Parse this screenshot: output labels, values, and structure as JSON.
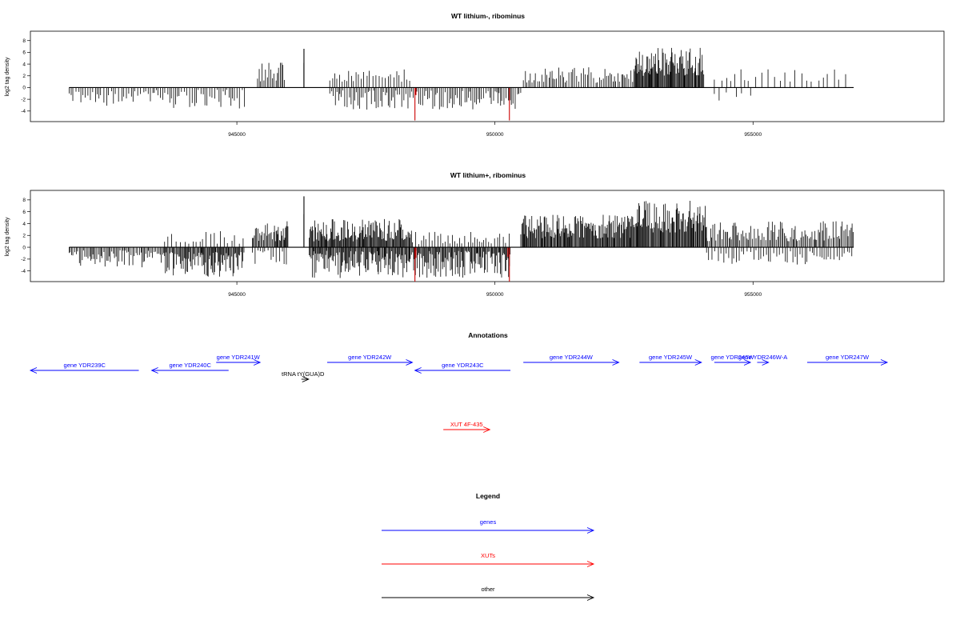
{
  "chart_data": [
    {
      "type": "bar",
      "title": "WT lithium-, ribominus",
      "ylabel": "log2 tag density",
      "xlabel": "",
      "xlim": [
        941000,
        958700
      ],
      "ylim": [
        -5.8,
        9.6
      ],
      "yticks": [
        "8",
        "6",
        "4",
        "2",
        "0",
        "-2",
        "-4"
      ],
      "xticks": [
        "945000",
        "950000",
        "955000"
      ],
      "series": [
        {
          "segments": [
            {
              "from": 941750,
              "to": 943400,
              "sign": -1,
              "density": 0.32,
              "min": 0.6,
              "max": 3.2,
              "seed": 11
            },
            {
              "from": 943400,
              "to": 945150,
              "sign": -1,
              "density": 0.35,
              "min": 0.4,
              "max": 3.6,
              "seed": 12
            },
            {
              "from": 945400,
              "to": 945950,
              "sign": 1,
              "density": 0.45,
              "min": 1.0,
              "max": 4.3,
              "seed": 13
            },
            {
              "from": 946800,
              "to": 948400,
              "sign": 1,
              "density": 0.28,
              "min": 0.8,
              "max": 3.3,
              "seed": 14
            },
            {
              "from": 946800,
              "to": 950500,
              "sign": -1,
              "density": 0.45,
              "min": 0.5,
              "max": 3.8,
              "seed": 15
            },
            {
              "from": 950550,
              "to": 952700,
              "sign": 1,
              "density": 0.45,
              "min": 0.8,
              "max": 3.6,
              "seed": 16
            },
            {
              "from": 952700,
              "to": 954050,
              "sign": 1,
              "density": 1.0,
              "min": 2.0,
              "max": 6.8,
              "seed": 17
            },
            {
              "from": 954250,
              "to": 956900,
              "sign": 1,
              "density": 0.14,
              "min": 1.0,
              "max": 3.2,
              "seed": 18
            },
            {
              "from": 954250,
              "to": 955100,
              "sign": -1,
              "density": 0.1,
              "min": 0.8,
              "max": 2.6,
              "seed": 19
            }
          ],
          "spikes": [
            {
              "x": 946300,
              "y": 6.6,
              "color": "#000000"
            },
            {
              "x": 946300,
              "y": 4.2,
              "color": "#000000"
            },
            {
              "x": 948450,
              "y": -5.6,
              "color": "#cc0000"
            },
            {
              "x": 948470,
              "y": -1.3,
              "color": "#cc0000"
            },
            {
              "x": 950280,
              "y": -5.6,
              "color": "#cc0000"
            }
          ]
        }
      ]
    },
    {
      "type": "bar",
      "title": "WT lithium+, ribominus",
      "ylabel": "log2 tag density",
      "xlabel": "",
      "xlim": [
        941000,
        958700
      ],
      "ylim": [
        -5.8,
        9.6
      ],
      "yticks": [
        "8",
        "6",
        "4",
        "2",
        "0",
        "-2",
        "-4"
      ],
      "xticks": [
        "945000",
        "950000",
        "955000"
      ],
      "series": [
        {
          "segments": [
            {
              "from": 941750,
              "to": 943600,
              "sign": -1,
              "density": 0.55,
              "min": 0.5,
              "max": 3.4,
              "seed": 21
            },
            {
              "from": 943600,
              "to": 945150,
              "sign": -1,
              "density": 0.9,
              "min": 0.8,
              "max": 5.0,
              "seed": 22
            },
            {
              "from": 943600,
              "to": 945150,
              "sign": 1,
              "density": 0.22,
              "min": 0.5,
              "max": 3.2,
              "seed": 23
            },
            {
              "from": 945300,
              "to": 946000,
              "sign": 1,
              "density": 0.8,
              "min": 1.0,
              "max": 4.5,
              "seed": 24
            },
            {
              "from": 945300,
              "to": 946000,
              "sign": -1,
              "density": 0.3,
              "min": 0.5,
              "max": 3.0,
              "seed": 25
            },
            {
              "from": 946400,
              "to": 948400,
              "sign": 1,
              "density": 0.95,
              "min": 1.0,
              "max": 4.8,
              "seed": 26
            },
            {
              "from": 946400,
              "to": 950300,
              "sign": -1,
              "density": 0.9,
              "min": 0.6,
              "max": 5.2,
              "seed": 27
            },
            {
              "from": 948400,
              "to": 950300,
              "sign": 1,
              "density": 0.3,
              "min": 0.5,
              "max": 2.6,
              "seed": 28
            },
            {
              "from": 950500,
              "to": 952700,
              "sign": 1,
              "density": 1.0,
              "min": 1.5,
              "max": 5.6,
              "seed": 29
            },
            {
              "from": 952700,
              "to": 954100,
              "sign": 1,
              "density": 1.0,
              "min": 2.5,
              "max": 8.0,
              "seed": 30
            },
            {
              "from": 954100,
              "to": 956950,
              "sign": 1,
              "density": 0.6,
              "min": 1.0,
              "max": 4.4,
              "seed": 31
            },
            {
              "from": 954100,
              "to": 956950,
              "sign": -1,
              "density": 0.3,
              "min": 0.5,
              "max": 3.0,
              "seed": 32
            }
          ],
          "spikes": [
            {
              "x": 946300,
              "y": 8.6,
              "color": "#000000"
            },
            {
              "x": 946300,
              "y": 5.6,
              "color": "#000000"
            },
            {
              "x": 948450,
              "y": -5.8,
              "color": "#cc0000"
            },
            {
              "x": 948470,
              "y": -1.8,
              "color": "#cc0000"
            },
            {
              "x": 950250,
              "y": -1.6,
              "color": "#cc0000"
            },
            {
              "x": 950280,
              "y": -5.8,
              "color": "#cc0000"
            }
          ]
        }
      ]
    }
  ],
  "annotations": {
    "title": "Annotations",
    "features": [
      {
        "label": "gene YDR239C",
        "from": 941000,
        "to": 943100,
        "strand": "-",
        "row": 2,
        "kind": "gene"
      },
      {
        "label": "gene YDR240C",
        "from": 943350,
        "to": 944840,
        "strand": "-",
        "row": 2,
        "kind": "gene"
      },
      {
        "label": "gene YDR241W",
        "from": 944600,
        "to": 945450,
        "strand": "+",
        "row": 1,
        "kind": "gene"
      },
      {
        "label": "tRNA tY(GUA)D",
        "from": 946250,
        "to": 946390,
        "strand": "+",
        "row": 3,
        "kind": "other"
      },
      {
        "label": "gene YDR242W",
        "from": 946750,
        "to": 948400,
        "strand": "+",
        "row": 1,
        "kind": "gene"
      },
      {
        "label": "gene YDR243C",
        "from": 948450,
        "to": 950300,
        "strand": "-",
        "row": 2,
        "kind": "gene"
      },
      {
        "label": "gene YDR244W",
        "from": 950550,
        "to": 952400,
        "strand": "+",
        "row": 1,
        "kind": "gene"
      },
      {
        "label": "gene YDR245W",
        "from": 952800,
        "to": 954000,
        "strand": "+",
        "row": 1,
        "kind": "gene"
      },
      {
        "label": "gene YDR246W",
        "from": 954250,
        "to": 954950,
        "strand": "+",
        "row": 1,
        "kind": "gene"
      },
      {
        "label": "gene YDR246W-A",
        "from": 955080,
        "to": 955300,
        "strand": "+",
        "row": 1,
        "kind": "gene"
      },
      {
        "label": "gene YDR247W",
        "from": 956050,
        "to": 957600,
        "strand": "+",
        "row": 1,
        "kind": "gene"
      },
      {
        "label": "XUT 4F-435",
        "from": 949000,
        "to": 949900,
        "strand": "+",
        "row": 4,
        "kind": "xut"
      }
    ]
  },
  "legend": {
    "title": "Legend",
    "items": [
      {
        "label": "genes",
        "color": "#0000ff"
      },
      {
        "label": "XUTs",
        "color": "#ff0000"
      },
      {
        "label": "other",
        "color": "#000000"
      }
    ]
  },
  "colors": {
    "gene": "#0000ff",
    "xut": "#ff0000",
    "other": "#000000",
    "peak": "#cc0000",
    "axis": "#000000"
  }
}
